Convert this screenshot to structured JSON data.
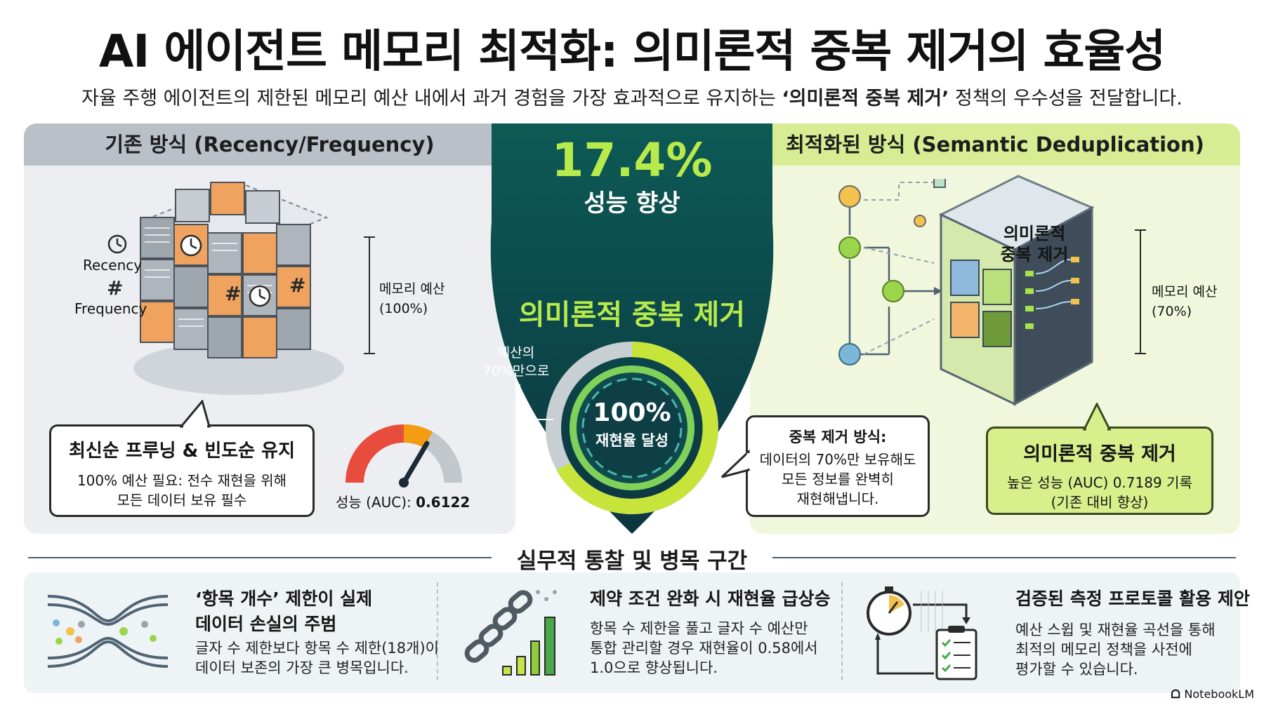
{
  "title": "AI 에이전트 메모리 최적화: 의미론적 중복 제거의 효율성",
  "subtitle": {
    "before": "자율 주행 에이전트의 제한된 메모리 예산 내에서 과거 경험을 가장 효과적으로 유지하는 ",
    "highlight": "‘의미론적 중복 제거’",
    "after": " 정책의 우수성을 전달합니다."
  },
  "left_panel": {
    "header": "기존 방식 (Recency/Frequency)",
    "recency_label": "Recency",
    "frequency_label": "Frequency",
    "budget_label_1": "메모리 예산",
    "budget_label_2": "(100%)",
    "callout_title": "최신순 프루닝 & 빈도순 유지",
    "callout_line1": "100% 예산 필요: 전수 재현을 위해",
    "callout_line2": "모든 데이터 보유 필수",
    "gauge_label": "성능 (AUC): ",
    "gauge_value": "0.6122"
  },
  "center": {
    "improvement": "17.4%",
    "improvement_label": "성능 향상",
    "method_title": "의미론적 중복 제거",
    "budget_note_1": "예산의",
    "budget_note_2": "70%만으로",
    "ring_value": "100%",
    "ring_label": "재현율 달성",
    "callout_title": "중복 제거 방식:",
    "callout_line1": "데이터의 70%만 보유해도",
    "callout_line2": "모든 정보를 완벽히",
    "callout_line3": "재현해냅니다."
  },
  "right_panel": {
    "header": "최적화된 방식 (Semantic Deduplication)",
    "cube_label_1": "의미론적",
    "cube_label_2": "중복 제거",
    "budget_label_1": "메모리 예산",
    "budget_label_2": "(70%)",
    "callout_title": "의미론적 중복 제거",
    "callout_line1": "높은 성능 (AUC) 0.7189 기록",
    "callout_line2": "(기존 대비 향상)"
  },
  "insights": {
    "section_title": "실무적 통찰 및 병목 구간",
    "items": [
      {
        "title_1": "‘항목 개수’ 제한이 실제",
        "title_2": "데이터 손실의 주범",
        "body_1": "글자 수 제한보다 항목 수 제한(18개)이",
        "body_2": "데이터 보존의 가장 큰 병목입니다."
      },
      {
        "title_1": "제약 조건 완화 시 재현율 급상승",
        "body_1": "항목 수 제한을 풀고 글자 수 예산만",
        "body_2": "통합 관리할 경우 재현율이 0.58에서",
        "body_3": "1.0으로 향상됩니다."
      },
      {
        "title_1": "검증된 측정 프로토콜 활용 제안",
        "body_1": "예산 스윕 및 재현율 곡선을 통해",
        "body_2": "최적의 메모리 정책을 사전에",
        "body_3": "평가할 수 있습니다."
      }
    ]
  },
  "footer": "NotebookLM",
  "colors": {
    "shield_dark": "#0d3c45",
    "accent_green": "#9fdc3a",
    "accent_lime": "#d7ec93",
    "gray_header": "#b9c0c8",
    "orange": "#f0a35e"
  }
}
